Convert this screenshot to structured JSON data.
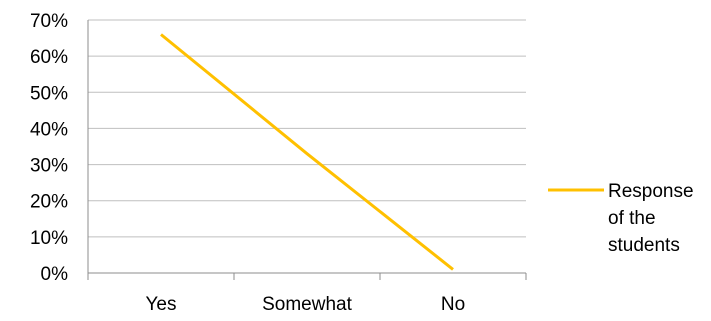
{
  "chart_data": {
    "type": "line",
    "categories": [
      "Yes",
      "Somewhat",
      "No"
    ],
    "series": [
      {
        "name": "Response of the students",
        "name_lines": [
          "Response",
          "of the",
          "students"
        ],
        "values": [
          66,
          33,
          1
        ],
        "color": "#FFC000"
      }
    ],
    "title": "",
    "xlabel": "",
    "ylabel": "",
    "ylim": [
      0,
      70
    ],
    "yticks": [
      0,
      10,
      20,
      30,
      40,
      50,
      60,
      70
    ],
    "ytick_format": "percent",
    "grid": true,
    "legend_position": "right"
  }
}
